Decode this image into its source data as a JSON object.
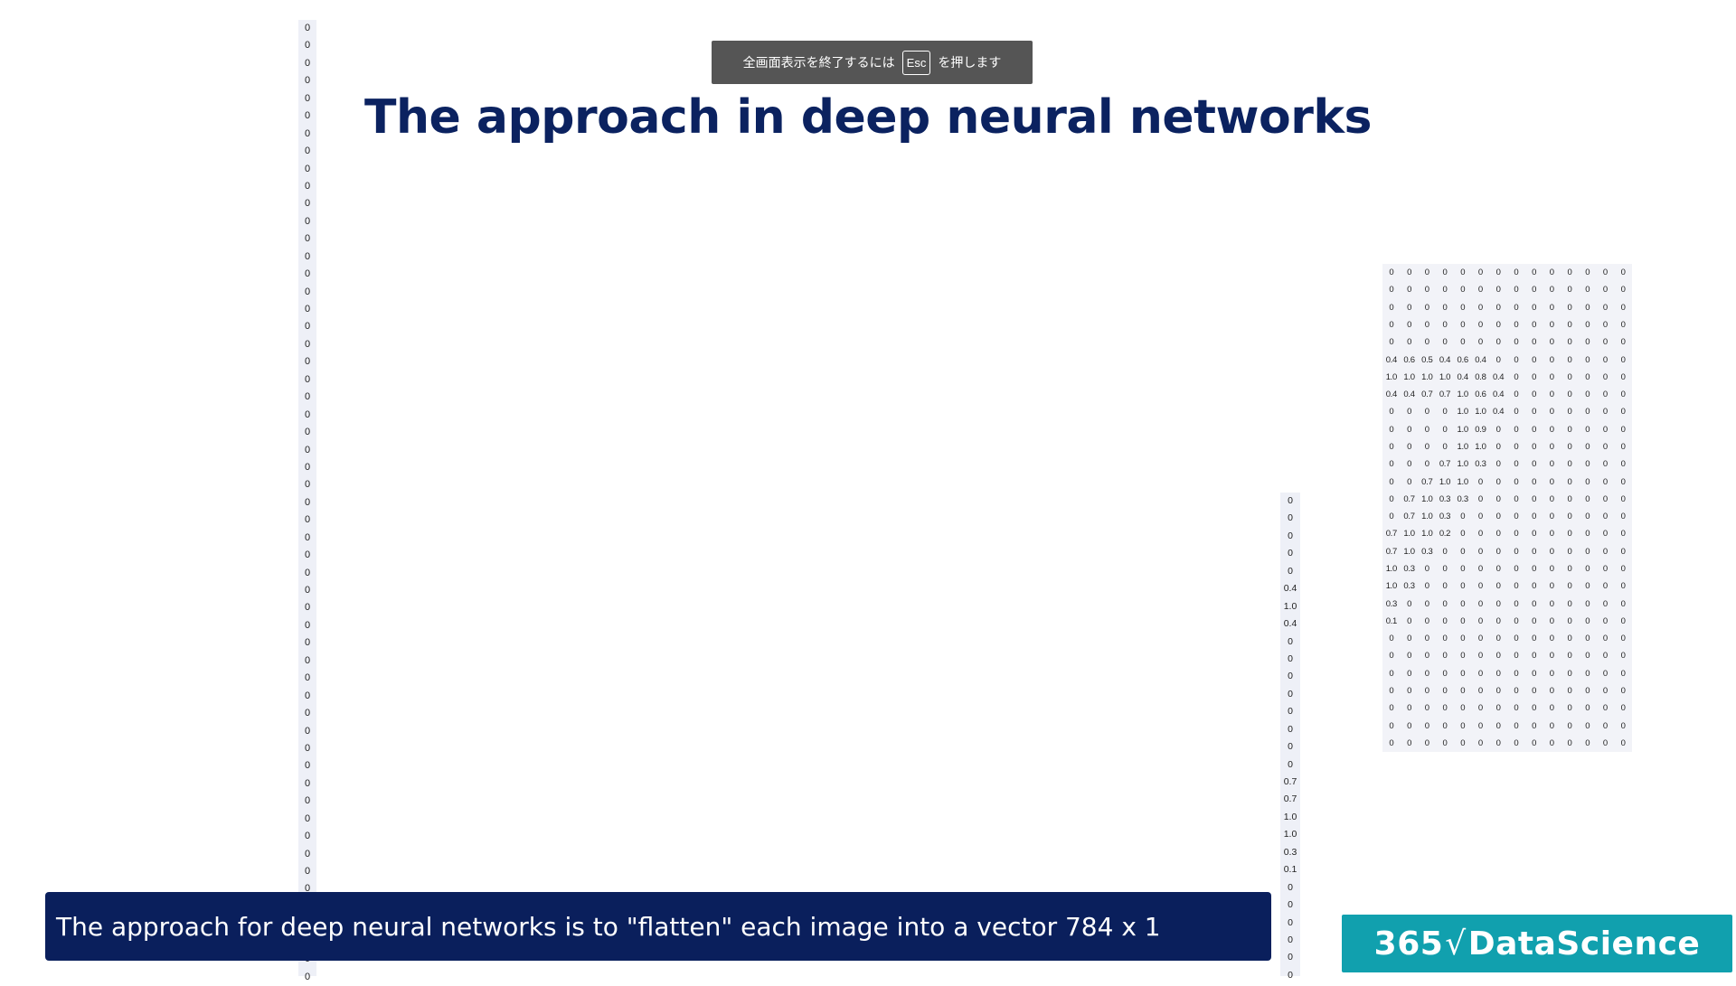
{
  "slide": {
    "title": "The approach in deep neural networks",
    "caption": "The approach for deep neural networks is to \"flatten\" each image into a vector 784 x 1"
  },
  "fullscreen_notice": {
    "prefix": "全画面表示を終了するには",
    "key": "Esc",
    "suffix": "を押します"
  },
  "logo": {
    "number": "365",
    "check": "√",
    "brand": "DataScience"
  },
  "vector_left": [
    "0",
    "0",
    "0",
    "0",
    "0",
    "0",
    "0",
    "0",
    "0",
    "0",
    "0",
    "0",
    "0",
    "0",
    "0",
    "0",
    "0",
    "0",
    "0",
    "0",
    "0",
    "0",
    "0",
    "0",
    "0",
    "0",
    "0",
    "0",
    "0",
    "0",
    "0",
    "0",
    "0",
    "0",
    "0",
    "0",
    "0",
    "0",
    "0",
    "0",
    "0",
    "0",
    "0",
    "0",
    "0",
    "0",
    "0",
    "0",
    "0",
    "0",
    "0",
    "0",
    "0",
    "0",
    "0"
  ],
  "vector_right": [
    "0",
    "0",
    "0",
    "0",
    "0",
    "0.4",
    "1.0",
    "0.4",
    "0",
    "0",
    "0",
    "0",
    "0",
    "0",
    "0",
    "0",
    "0.7",
    "0.7",
    "1.0",
    "1.0",
    "0.3",
    "0.1",
    "0",
    "0",
    "0",
    "0",
    "0",
    "0"
  ],
  "pixel_matrix": [
    [
      "0",
      "0",
      "0",
      "0",
      "0",
      "0",
      "0",
      "0",
      "0",
      "0",
      "0",
      "0",
      "0",
      "0"
    ],
    [
      "0",
      "0",
      "0",
      "0",
      "0",
      "0",
      "0",
      "0",
      "0",
      "0",
      "0",
      "0",
      "0",
      "0"
    ],
    [
      "0",
      "0",
      "0",
      "0",
      "0",
      "0",
      "0",
      "0",
      "0",
      "0",
      "0",
      "0",
      "0",
      "0"
    ],
    [
      "0",
      "0",
      "0",
      "0",
      "0",
      "0",
      "0",
      "0",
      "0",
      "0",
      "0",
      "0",
      "0",
      "0"
    ],
    [
      "0",
      "0",
      "0",
      "0",
      "0",
      "0",
      "0",
      "0",
      "0",
      "0",
      "0",
      "0",
      "0",
      "0"
    ],
    [
      "0.4",
      "0.6",
      "0.5",
      "0.4",
      "0.6",
      "0.4",
      "0",
      "0",
      "0",
      "0",
      "0",
      "0",
      "0",
      "0"
    ],
    [
      "1.0",
      "1.0",
      "1.0",
      "1.0",
      "0.4",
      "0.8",
      "0.4",
      "0",
      "0",
      "0",
      "0",
      "0",
      "0",
      "0"
    ],
    [
      "0.4",
      "0.4",
      "0.7",
      "0.7",
      "1.0",
      "0.6",
      "0.4",
      "0",
      "0",
      "0",
      "0",
      "0",
      "0",
      "0"
    ],
    [
      "0",
      "0",
      "0",
      "0",
      "1.0",
      "1.0",
      "0.4",
      "0",
      "0",
      "0",
      "0",
      "0",
      "0",
      "0"
    ],
    [
      "0",
      "0",
      "0",
      "0",
      "1.0",
      "0.9",
      "0",
      "0",
      "0",
      "0",
      "0",
      "0",
      "0",
      "0"
    ],
    [
      "0",
      "0",
      "0",
      "0",
      "1.0",
      "1.0",
      "0",
      "0",
      "0",
      "0",
      "0",
      "0",
      "0",
      "0"
    ],
    [
      "0",
      "0",
      "0",
      "0.7",
      "1.0",
      "0.3",
      "0",
      "0",
      "0",
      "0",
      "0",
      "0",
      "0",
      "0"
    ],
    [
      "0",
      "0",
      "0.7",
      "1.0",
      "1.0",
      "0",
      "0",
      "0",
      "0",
      "0",
      "0",
      "0",
      "0",
      "0"
    ],
    [
      "0",
      "0.7",
      "1.0",
      "0.3",
      "0.3",
      "0",
      "0",
      "0",
      "0",
      "0",
      "0",
      "0",
      "0",
      "0"
    ],
    [
      "0",
      "0.7",
      "1.0",
      "0.3",
      "0",
      "0",
      "0",
      "0",
      "0",
      "0",
      "0",
      "0",
      "0",
      "0"
    ],
    [
      "0.7",
      "1.0",
      "1.0",
      "0.2",
      "0",
      "0",
      "0",
      "0",
      "0",
      "0",
      "0",
      "0",
      "0",
      "0"
    ],
    [
      "0.7",
      "1.0",
      "0.3",
      "0",
      "0",
      "0",
      "0",
      "0",
      "0",
      "0",
      "0",
      "0",
      "0",
      "0"
    ],
    [
      "1.0",
      "0.3",
      "0",
      "0",
      "0",
      "0",
      "0",
      "0",
      "0",
      "0",
      "0",
      "0",
      "0",
      "0"
    ],
    [
      "1.0",
      "0.3",
      "0",
      "0",
      "0",
      "0",
      "0",
      "0",
      "0",
      "0",
      "0",
      "0",
      "0",
      "0"
    ],
    [
      "0.3",
      "0",
      "0",
      "0",
      "0",
      "0",
      "0",
      "0",
      "0",
      "0",
      "0",
      "0",
      "0",
      "0"
    ],
    [
      "0.1",
      "0",
      "0",
      "0",
      "0",
      "0",
      "0",
      "0",
      "0",
      "0",
      "0",
      "0",
      "0",
      "0"
    ],
    [
      "0",
      "0",
      "0",
      "0",
      "0",
      "0",
      "0",
      "0",
      "0",
      "0",
      "0",
      "0",
      "0",
      "0"
    ],
    [
      "0",
      "0",
      "0",
      "0",
      "0",
      "0",
      "0",
      "0",
      "0",
      "0",
      "0",
      "0",
      "0",
      "0"
    ],
    [
      "0",
      "0",
      "0",
      "0",
      "0",
      "0",
      "0",
      "0",
      "0",
      "0",
      "0",
      "0",
      "0",
      "0"
    ],
    [
      "0",
      "0",
      "0",
      "0",
      "0",
      "0",
      "0",
      "0",
      "0",
      "0",
      "0",
      "0",
      "0",
      "0"
    ],
    [
      "0",
      "0",
      "0",
      "0",
      "0",
      "0",
      "0",
      "0",
      "0",
      "0",
      "0",
      "0",
      "0",
      "0"
    ],
    [
      "0",
      "0",
      "0",
      "0",
      "0",
      "0",
      "0",
      "0",
      "0",
      "0",
      "0",
      "0",
      "0",
      "0"
    ],
    [
      "0",
      "0",
      "0",
      "0",
      "0",
      "0",
      "0",
      "0",
      "0",
      "0",
      "0",
      "0",
      "0",
      "0"
    ]
  ]
}
